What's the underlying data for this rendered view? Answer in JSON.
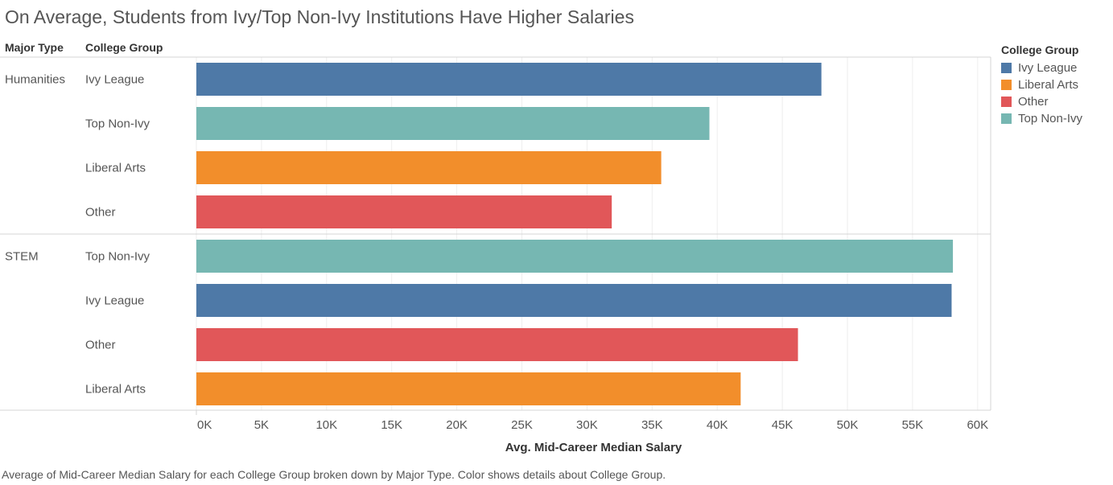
{
  "title": "On Average, Students from Ivy/Top Non-Ivy Institutions Have Higher Salaries",
  "headers": {
    "major_type": "Major Type",
    "college_group": "College Group"
  },
  "caption": "Average of Mid-Career Median Salary for each College Group broken down by Major Type.  Color shows details about College Group.",
  "legend": {
    "title": "College Group",
    "items": [
      {
        "label": "Ivy League",
        "color": "#4e79a7"
      },
      {
        "label": "Liberal Arts",
        "color": "#f28e2b"
      },
      {
        "label": "Other",
        "color": "#e15759"
      },
      {
        "label": "Top Non-Ivy",
        "color": "#76b7b2"
      }
    ]
  },
  "chart_data": {
    "type": "bar",
    "orientation": "horizontal",
    "xlabel": "Avg. Mid-Career Median Salary",
    "xlim": [
      0,
      61000
    ],
    "x_ticks": [
      0,
      5000,
      10000,
      15000,
      20000,
      25000,
      30000,
      35000,
      40000,
      45000,
      50000,
      55000,
      60000
    ],
    "x_tick_labels": [
      "0K",
      "5K",
      "10K",
      "15K",
      "20K",
      "25K",
      "30K",
      "35K",
      "40K",
      "45K",
      "50K",
      "55K",
      "60K"
    ],
    "grid": true,
    "legend_position": "right",
    "groups": [
      {
        "name": "Humanities",
        "bars": [
          {
            "category": "Ivy League",
            "value": 48000
          },
          {
            "category": "Top Non-Ivy",
            "value": 39400
          },
          {
            "category": "Liberal Arts",
            "value": 35700
          },
          {
            "category": "Other",
            "value": 31900
          }
        ]
      },
      {
        "name": "STEM",
        "bars": [
          {
            "category": "Top Non-Ivy",
            "value": 58100
          },
          {
            "category": "Ivy League",
            "value": 58000
          },
          {
            "category": "Other",
            "value": 46200
          },
          {
            "category": "Liberal Arts",
            "value": 41800
          }
        ]
      }
    ]
  }
}
